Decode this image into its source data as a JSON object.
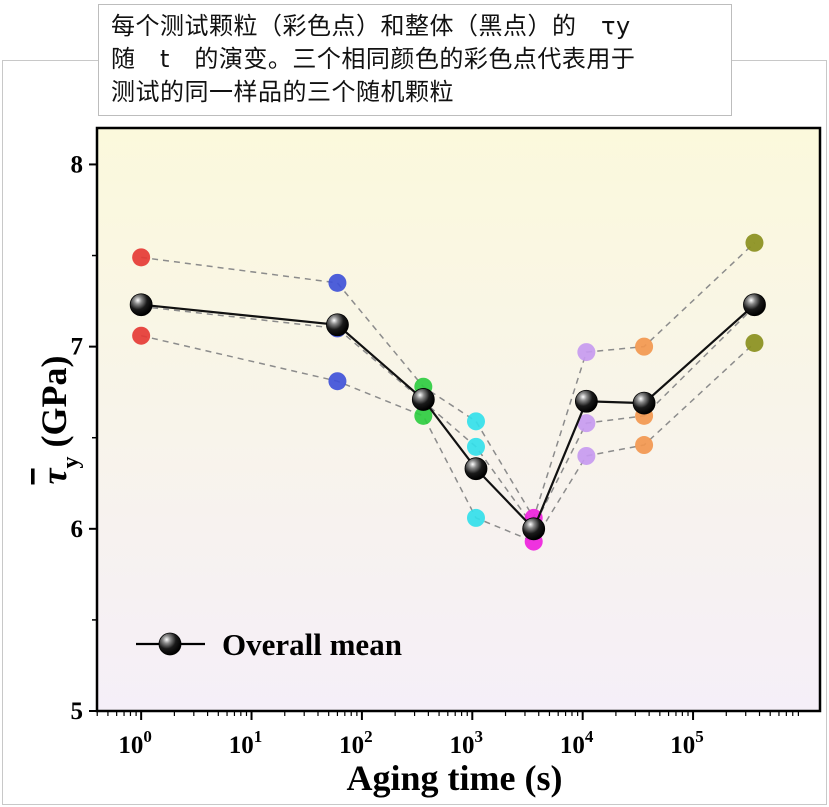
{
  "caption": {
    "line1": "每个测试颗粒（彩色点）和整体（黑点）的　τy",
    "line2": "随　t　的演变。三个相同颜色的彩色点代表用于",
    "line3": "测试的同一样品的三个随机颗粒"
  },
  "chart_data": {
    "type": "line",
    "xscale": "log",
    "xlim_log10": [
      -0.4,
      6.15
    ],
    "ylim": [
      5,
      8.2
    ],
    "xlabel": "Aging time (s)",
    "ylabel_symbol": "τ",
    "ylabel_sub": "y",
    "ylabel_unit": "(GPa)",
    "y_ticks": [
      5,
      6,
      7,
      8
    ],
    "x_ticks": [
      {
        "base": "10",
        "exp": "0",
        "log": 0
      },
      {
        "base": "10",
        "exp": "1",
        "log": 1
      },
      {
        "base": "10",
        "exp": "2",
        "log": 2
      },
      {
        "base": "10",
        "exp": "3",
        "log": 3
      },
      {
        "base": "10",
        "exp": "4",
        "log": 4
      },
      {
        "base": "10",
        "exp": "5",
        "log": 5
      }
    ],
    "groups": [
      {
        "time_s": 1,
        "color": "#e53935",
        "values": [
          7.49,
          7.22,
          7.06
        ]
      },
      {
        "time_s": 60,
        "color": "#3f51d8",
        "values": [
          7.35,
          7.1,
          6.81
        ]
      },
      {
        "time_s": 360,
        "color": "#2ecc40",
        "values": [
          6.78,
          6.7,
          6.62
        ]
      },
      {
        "time_s": 1080,
        "color": "#33e0ea",
        "values": [
          6.59,
          6.45,
          6.06
        ]
      },
      {
        "time_s": 3600,
        "color": "#ee22dd",
        "values": [
          6.06,
          6.01,
          5.93
        ]
      },
      {
        "time_s": 10800,
        "color": "#c79af0",
        "values": [
          6.97,
          6.58,
          6.4
        ]
      },
      {
        "time_s": 36000,
        "color": "#f2974f",
        "values": [
          7.0,
          6.62,
          6.46
        ]
      },
      {
        "time_s": 360000,
        "color": "#8a8f1e",
        "values": [
          7.57,
          7.22,
          7.02
        ]
      }
    ],
    "overall_mean": {
      "name": "Overall mean",
      "color": "#111111",
      "x_s": [
        1,
        60,
        360,
        1080,
        3600,
        10800,
        36000,
        360000
      ],
      "y": [
        7.23,
        7.12,
        6.71,
        6.33,
        6.0,
        6.7,
        6.69,
        7.23
      ]
    },
    "legend": {
      "position": "bottom-left",
      "label": "Overall mean"
    }
  }
}
